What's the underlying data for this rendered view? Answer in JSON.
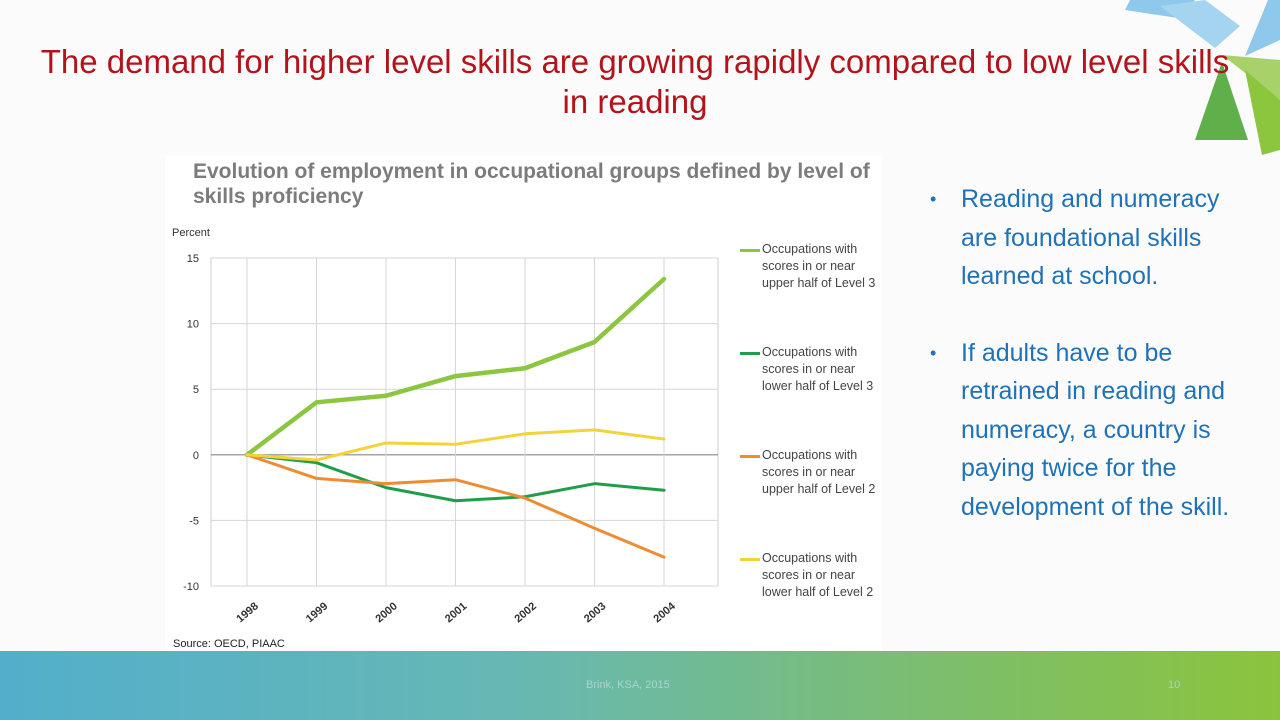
{
  "slide": {
    "title": "The demand for higher level skills are growing rapidly compared to low level skills in reading",
    "footer_text": "Brink, KSA, 2015",
    "page_number": "10",
    "accent_colors": [
      "#7cc3e8",
      "#5fb04a",
      "#a8d16a",
      "#8bc43c"
    ]
  },
  "chart_title": "Evolution of employment in occupational groups defined by level of skills proficiency",
  "source": "Source: OECD, PIAAC",
  "chart_data": {
    "type": "line",
    "title": "Evolution of employment in occupational groups defined by level of skills proficiency",
    "ylabel": "Percent",
    "xlabel": "",
    "ylim": [
      -10,
      15
    ],
    "yticks": [
      15,
      10,
      5,
      0,
      -5,
      -10
    ],
    "x": [
      "1998",
      "1999",
      "2000",
      "2001",
      "2002",
      "2003",
      "2004"
    ],
    "grid": true,
    "legend": "right",
    "series": [
      {
        "name": "Occupations with scores in or near upper half of Level 3",
        "color": "#8cc63f",
        "values": [
          0,
          4.0,
          4.5,
          6.0,
          6.6,
          8.6,
          13.4
        ]
      },
      {
        "name": "Occupations with scores in or near lower half of Level 3",
        "color": "#1f9e4a",
        "values": [
          0,
          -0.6,
          -2.5,
          -3.5,
          -3.2,
          -2.2,
          -2.7
        ]
      },
      {
        "name": "Occupations with scores in or near upper half of Level 2",
        "color": "#ee8c34",
        "values": [
          0,
          -1.8,
          -2.2,
          -1.9,
          -3.3,
          -5.6,
          -7.8
        ]
      },
      {
        "name": "Occupations with scores in or near lower half of Level 2",
        "color": "#f2d33a",
        "values": [
          0,
          -0.4,
          0.9,
          0.8,
          1.6,
          1.9,
          1.2
        ]
      }
    ]
  },
  "bullets": [
    "Reading and numeracy are foundational skills learned at school.",
    "If adults have to be retrained in reading and numeracy, a country is paying twice for the development of the skill."
  ]
}
